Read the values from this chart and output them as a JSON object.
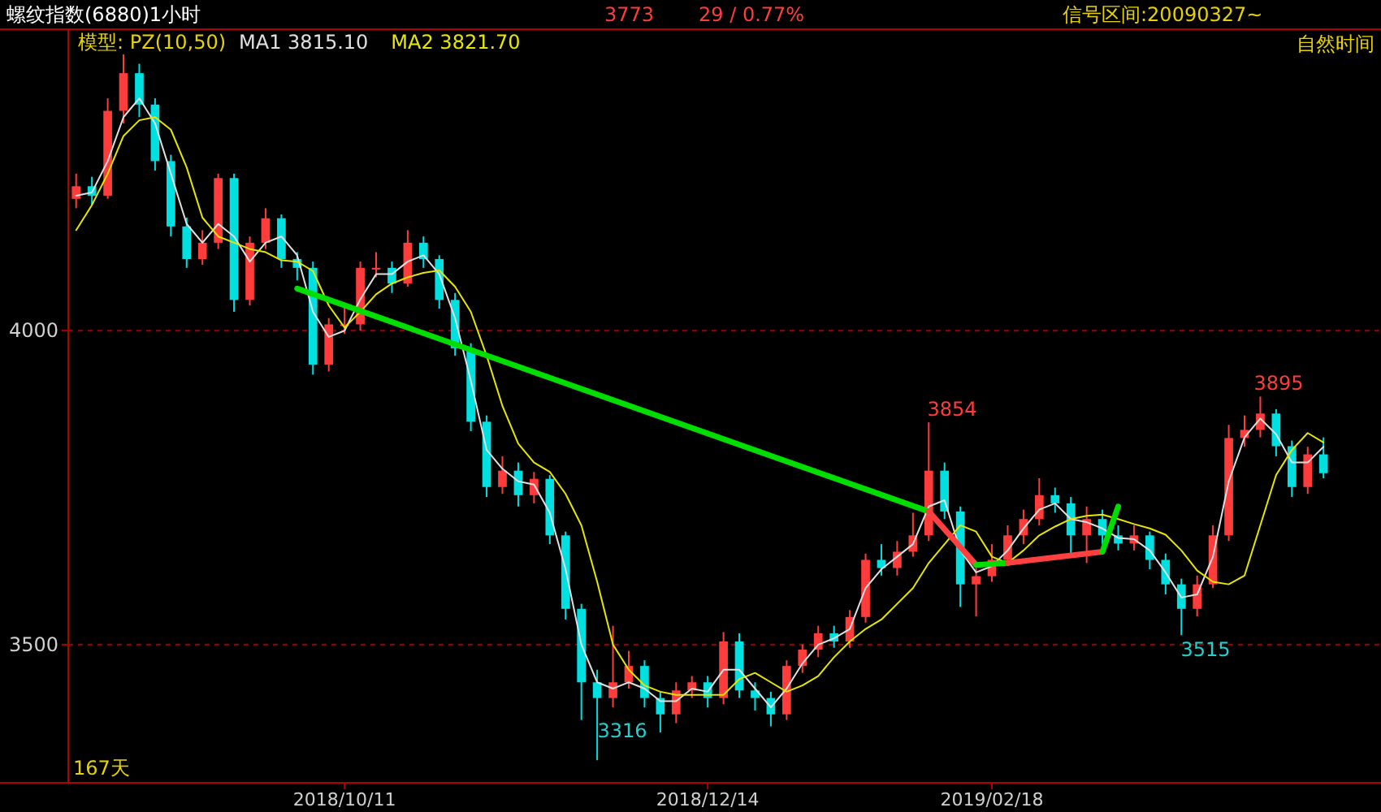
{
  "chart_data": {
    "type": "candlestick",
    "title": "螺纹指数(6880)1小时",
    "categories": [
      null,
      null,
      null,
      null,
      null,
      null,
      null,
      null,
      null,
      null,
      null,
      null,
      null,
      null,
      null,
      null,
      null,
      "2018/10/11",
      null,
      null,
      null,
      null,
      null,
      null,
      null,
      null,
      null,
      null,
      null,
      null,
      null,
      null,
      null,
      null,
      null,
      null,
      null,
      null,
      null,
      null,
      "2018/12/14",
      null,
      null,
      null,
      null,
      null,
      null,
      null,
      null,
      null,
      null,
      null,
      null,
      null,
      null,
      null,
      null,
      null,
      "2019/02/18",
      null,
      null,
      null,
      null,
      null,
      null,
      null,
      null,
      null,
      null,
      null,
      null,
      null,
      null,
      null,
      null,
      null,
      null,
      null,
      null,
      null
    ],
    "ohlc": [
      [
        4210,
        4250,
        4195,
        4230
      ],
      [
        4230,
        4245,
        4200,
        4215
      ],
      [
        4215,
        4370,
        4210,
        4350
      ],
      [
        4350,
        4440,
        4330,
        4410
      ],
      [
        4410,
        4425,
        4340,
        4360
      ],
      [
        4360,
        4370,
        4255,
        4270
      ],
      [
        4270,
        4280,
        4150,
        4166
      ],
      [
        4166,
        4180,
        4100,
        4114
      ],
      [
        4114,
        4160,
        4105,
        4140
      ],
      [
        4140,
        4250,
        4130,
        4243
      ],
      [
        4243,
        4250,
        4030,
        4049
      ],
      [
        4049,
        4150,
        4040,
        4140
      ],
      [
        4140,
        4195,
        4130,
        4179
      ],
      [
        4179,
        4185,
        4100,
        4114
      ],
      [
        4114,
        4125,
        4080,
        4100
      ],
      [
        4100,
        4110,
        3930,
        3946
      ],
      [
        3946,
        4020,
        3935,
        4010
      ],
      [
        4010,
        4040,
        3995,
        4010
      ],
      [
        4010,
        4110,
        4000,
        4100
      ],
      [
        4100,
        4125,
        4085,
        4100
      ],
      [
        4100,
        4110,
        4060,
        4075
      ],
      [
        4075,
        4160,
        4070,
        4140
      ],
      [
        4140,
        4150,
        4100,
        4114
      ],
      [
        4114,
        4120,
        4035,
        4049
      ],
      [
        4049,
        4060,
        3960,
        3972
      ],
      [
        3972,
        3980,
        3840,
        3855
      ],
      [
        3855,
        3865,
        3735,
        3751
      ],
      [
        3751,
        3800,
        3740,
        3777
      ],
      [
        3777,
        3790,
        3720,
        3738
      ],
      [
        3738,
        3775,
        3725,
        3764
      ],
      [
        3764,
        3770,
        3660,
        3674
      ],
      [
        3674,
        3680,
        3540,
        3557
      ],
      [
        3557,
        3565,
        3380,
        3440
      ],
      [
        3440,
        3460,
        3316,
        3415
      ],
      [
        3415,
        3530,
        3400,
        3440
      ],
      [
        3440,
        3490,
        3430,
        3466
      ],
      [
        3466,
        3475,
        3400,
        3415
      ],
      [
        3415,
        3425,
        3360,
        3389
      ],
      [
        3389,
        3440,
        3375,
        3427
      ],
      [
        3427,
        3450,
        3415,
        3440
      ],
      [
        3440,
        3450,
        3400,
        3415
      ],
      [
        3415,
        3520,
        3405,
        3505
      ],
      [
        3505,
        3518,
        3415,
        3427
      ],
      [
        3427,
        3440,
        3395,
        3415
      ],
      [
        3415,
        3425,
        3370,
        3389
      ],
      [
        3389,
        3475,
        3380,
        3466
      ],
      [
        3466,
        3500,
        3455,
        3492
      ],
      [
        3492,
        3530,
        3480,
        3518
      ],
      [
        3518,
        3530,
        3495,
        3505
      ],
      [
        3505,
        3555,
        3495,
        3544
      ],
      [
        3544,
        3645,
        3535,
        3635
      ],
      [
        3635,
        3660,
        3610,
        3622
      ],
      [
        3622,
        3665,
        3610,
        3648
      ],
      [
        3648,
        3710,
        3640,
        3674
      ],
      [
        3674,
        3854,
        3665,
        3777
      ],
      [
        3777,
        3790,
        3700,
        3712
      ],
      [
        3712,
        3720,
        3560,
        3596
      ],
      [
        3596,
        3625,
        3545,
        3609
      ],
      [
        3609,
        3660,
        3600,
        3635
      ],
      [
        3635,
        3690,
        3625,
        3674
      ],
      [
        3674,
        3715,
        3660,
        3700
      ],
      [
        3700,
        3765,
        3690,
        3738
      ],
      [
        3738,
        3750,
        3710,
        3725
      ],
      [
        3725,
        3735,
        3640,
        3674
      ],
      [
        3674,
        3720,
        3630,
        3700
      ],
      [
        3700,
        3715,
        3660,
        3674
      ],
      [
        3674,
        3690,
        3650,
        3661
      ],
      [
        3661,
        3690,
        3650,
        3674
      ],
      [
        3674,
        3680,
        3620,
        3635
      ],
      [
        3635,
        3645,
        3580,
        3596
      ],
      [
        3596,
        3605,
        3515,
        3557
      ],
      [
        3557,
        3610,
        3545,
        3596
      ],
      [
        3596,
        3690,
        3590,
        3674
      ],
      [
        3674,
        3850,
        3665,
        3829
      ],
      [
        3829,
        3865,
        3815,
        3842
      ],
      [
        3842,
        3895,
        3830,
        3868
      ],
      [
        3868,
        3875,
        3800,
        3816
      ],
      [
        3816,
        3825,
        3735,
        3751
      ],
      [
        3751,
        3815,
        3740,
        3803
      ],
      [
        3803,
        3830,
        3765,
        3773
      ]
    ],
    "series": [
      {
        "type": "line",
        "name": "MA1 3815.10",
        "color": "#e0e0e0",
        "values": [
          4215,
          4220,
          4270,
          4340,
          4370,
          4330,
          4250,
          4170,
          4140,
          4170,
          4150,
          4110,
          4140,
          4150,
          4120,
          4030,
          3990,
          4000,
          4050,
          4090,
          4090,
          4110,
          4120,
          4090,
          4020,
          3920,
          3810,
          3780,
          3760,
          3755,
          3710,
          3620,
          3500,
          3440,
          3430,
          3440,
          3430,
          3410,
          3410,
          3430,
          3425,
          3460,
          3460,
          3430,
          3400,
          3430,
          3470,
          3500,
          3510,
          3525,
          3590,
          3620,
          3640,
          3660,
          3720,
          3730,
          3650,
          3615,
          3625,
          3650,
          3685,
          3715,
          3725,
          3700,
          3695,
          3685,
          3670,
          3668,
          3650,
          3615,
          3575,
          3580,
          3640,
          3760,
          3830,
          3860,
          3835,
          3790,
          3790,
          3815
        ]
      },
      {
        "type": "line",
        "name": "MA2 3821.70",
        "color": "#e6e600",
        "values": [
          4160,
          4200,
          4250,
          4310,
          4335,
          4340,
          4320,
          4260,
          4180,
          4150,
          4140,
          4130,
          4125,
          4112,
          4110,
          4095,
          4040,
          4005,
          4030,
          4058,
          4075,
          4085,
          4092,
          4096,
          4070,
          4030,
          3960,
          3880,
          3820,
          3790,
          3775,
          3740,
          3690,
          3600,
          3500,
          3460,
          3435,
          3425,
          3420,
          3420,
          3420,
          3420,
          3445,
          3455,
          3440,
          3425,
          3435,
          3450,
          3480,
          3505,
          3525,
          3540,
          3565,
          3590,
          3630,
          3660,
          3690,
          3680,
          3640,
          3630,
          3650,
          3674,
          3688,
          3700,
          3705,
          3707,
          3700,
          3692,
          3685,
          3675,
          3650,
          3618,
          3600,
          3596,
          3610,
          3690,
          3770,
          3810,
          3837,
          3822
        ]
      },
      {
        "type": "line",
        "color": "#00dd00",
        "values": [
          null,
          null,
          null,
          null,
          null,
          null,
          null,
          null,
          null,
          null,
          null,
          null,
          null,
          null,
          4067,
          null,
          null,
          null,
          null,
          null,
          null,
          null,
          null,
          null,
          null,
          null,
          null,
          null,
          null,
          null,
          null,
          null,
          null,
          null,
          null,
          null,
          null,
          null,
          null,
          null,
          null,
          null,
          null,
          null,
          null,
          null,
          null,
          null,
          null,
          null,
          null,
          null,
          null,
          null,
          3712,
          null,
          null,
          null,
          null,
          null,
          null,
          null,
          null,
          null,
          null,
          null,
          null,
          null,
          null,
          null,
          null,
          null,
          null,
          null,
          null,
          null,
          null,
          null,
          null,
          null
        ]
      },
      {
        "type": "line",
        "color": "#ff4040",
        "values": [
          null,
          null,
          null,
          null,
          null,
          null,
          null,
          null,
          null,
          null,
          null,
          null,
          null,
          null,
          null,
          null,
          null,
          null,
          null,
          null,
          null,
          null,
          null,
          null,
          null,
          null,
          null,
          null,
          null,
          null,
          null,
          null,
          null,
          null,
          null,
          null,
          null,
          null,
          null,
          null,
          null,
          null,
          null,
          null,
          null,
          null,
          null,
          null,
          null,
          null,
          null,
          null,
          null,
          null,
          3712,
          null,
          null,
          3627,
          null,
          null,
          null,
          null,
          null,
          null,
          null,
          null,
          null,
          null,
          null,
          null,
          null,
          null,
          null,
          null,
          null,
          null,
          null,
          null,
          null,
          null
        ]
      },
      {
        "type": "line",
        "color": "#00dd00",
        "values": [
          null,
          null,
          null,
          null,
          null,
          null,
          null,
          null,
          null,
          null,
          null,
          null,
          null,
          null,
          null,
          null,
          null,
          null,
          null,
          null,
          null,
          null,
          null,
          null,
          null,
          null,
          null,
          null,
          null,
          null,
          null,
          null,
          null,
          null,
          null,
          null,
          null,
          null,
          null,
          null,
          null,
          null,
          null,
          null,
          null,
          null,
          null,
          null,
          null,
          null,
          null,
          null,
          null,
          null,
          null,
          null,
          null,
          3627,
          null,
          3630,
          null,
          null,
          null,
          null,
          null,
          null,
          null,
          null,
          null,
          null,
          null,
          null,
          null,
          null,
          null,
          null,
          null,
          null,
          null,
          null
        ]
      },
      {
        "type": "line",
        "color": "#ff4040",
        "values": [
          null,
          null,
          null,
          null,
          null,
          null,
          null,
          null,
          null,
          null,
          null,
          null,
          null,
          null,
          null,
          null,
          null,
          null,
          null,
          null,
          null,
          null,
          null,
          null,
          null,
          null,
          null,
          null,
          null,
          null,
          null,
          null,
          null,
          null,
          null,
          null,
          null,
          null,
          null,
          null,
          null,
          null,
          null,
          null,
          null,
          null,
          null,
          null,
          null,
          null,
          null,
          null,
          null,
          null,
          null,
          null,
          null,
          null,
          null,
          3630,
          null,
          null,
          null,
          null,
          null,
          3648,
          null,
          null,
          null,
          null,
          null,
          null,
          null,
          null,
          null,
          null,
          null,
          null,
          null,
          null
        ]
      },
      {
        "type": "line",
        "color": "#00dd00",
        "values": [
          null,
          null,
          null,
          null,
          null,
          null,
          null,
          null,
          null,
          null,
          null,
          null,
          null,
          null,
          null,
          null,
          null,
          null,
          null,
          null,
          null,
          null,
          null,
          null,
          null,
          null,
          null,
          null,
          null,
          null,
          null,
          null,
          null,
          null,
          null,
          null,
          null,
          null,
          null,
          null,
          null,
          null,
          null,
          null,
          null,
          null,
          null,
          null,
          null,
          null,
          null,
          null,
          null,
          null,
          null,
          null,
          null,
          null,
          null,
          null,
          null,
          null,
          null,
          null,
          null,
          3648,
          3720,
          null,
          null,
          null,
          null,
          null,
          null,
          null,
          null,
          null,
          null,
          null,
          null,
          null
        ]
      }
    ],
    "ylim": [
      3280,
      4480
    ],
    "yticks": [
      3500,
      4000
    ],
    "grid": "y",
    "legend": "top left",
    "annotations": [
      "3773",
      "29 / 0.77%",
      "信号区间:20090327~",
      "模型: PZ(10,50)",
      "自然时间",
      "167天",
      "3854",
      "3316",
      "3515",
      "3895"
    ]
  }
}
